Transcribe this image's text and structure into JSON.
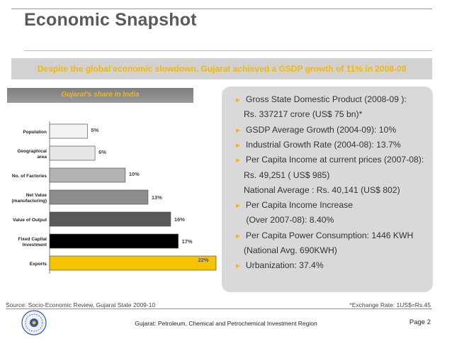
{
  "title": "Economic Snapshot",
  "banner": "Despite the global economic slowdown, Gujarat achieved a GSDP growth of 11% in 2008-09",
  "chart_data": {
    "type": "bar",
    "title": "Gujarat's share in India",
    "categories": [
      "Population",
      "Geographical area",
      "No. of Factories",
      "Net Value (manufacturing)",
      "Value of Output",
      "Fixed Capital Investment",
      "Exports"
    ],
    "category_lines": [
      [
        "Population"
      ],
      [
        "Geographical",
        "area"
      ],
      [
        "No. of Factories"
      ],
      [
        "Net Value",
        "(manufacturing)"
      ],
      [
        "Value of Output"
      ],
      [
        "Fixed Capital",
        "Investment"
      ],
      [
        "Exports"
      ]
    ],
    "values": [
      5,
      6,
      10,
      13,
      16,
      17,
      22
    ],
    "labels": [
      "5%",
      "6%",
      "10%",
      "13%",
      "16%",
      "17%",
      "22%"
    ],
    "colors": [
      "#f2f2f2",
      "#e6e6e6",
      "#b3b3b3",
      "#8c8c8c",
      "#595959",
      "#000000",
      "#f5c400"
    ],
    "xlim": [
      0,
      22
    ],
    "xlabel": "",
    "ylabel": ""
  },
  "bullets": [
    {
      "text": "Gross State Domestic Product (2008-09 ):",
      "cont": [
        "Rs. 337217 crore (US$ 75 bn)*"
      ]
    },
    {
      "text": "GSDP Average Growth (2004-09): 10%",
      "cont": []
    },
    {
      "text": "Industrial Growth Rate (2004-08): 13.7%",
      "cont": []
    },
    {
      "text": "Per Capita Income at current prices (2007-08):",
      "cont": [
        "Rs. 49,251 ( US$ 985)",
        "National Average : Rs. 40,141 (US$ 802)"
      ]
    },
    {
      "text": "Per Capita Income Increase",
      "cont": [
        " (Over 2007-08): 8.40%"
      ]
    },
    {
      "text": "Per Capita Power Consumption: 1446 KWH",
      "cont": [
        "(National Avg. 690KWH)"
      ]
    },
    {
      "text": "Urbanization: 37.4%",
      "cont": []
    }
  ],
  "bullet_marker": "►",
  "source": "Source: Socio-Economic Review, Gujarat State 2009-10",
  "exchange_rate": "*Exchange Rate: 1US$=Rs.45",
  "footer": "Gujarat: Petroleum, Chemical and Petrochemical Investment Region",
  "page": "Page 2",
  "colors": {
    "accent": "#f5b800",
    "title": "#5a5a5a",
    "banner_bg": "#d2d2d2",
    "panel_bg": "#d9d9d9",
    "footer_rule": "#7d94c8"
  }
}
